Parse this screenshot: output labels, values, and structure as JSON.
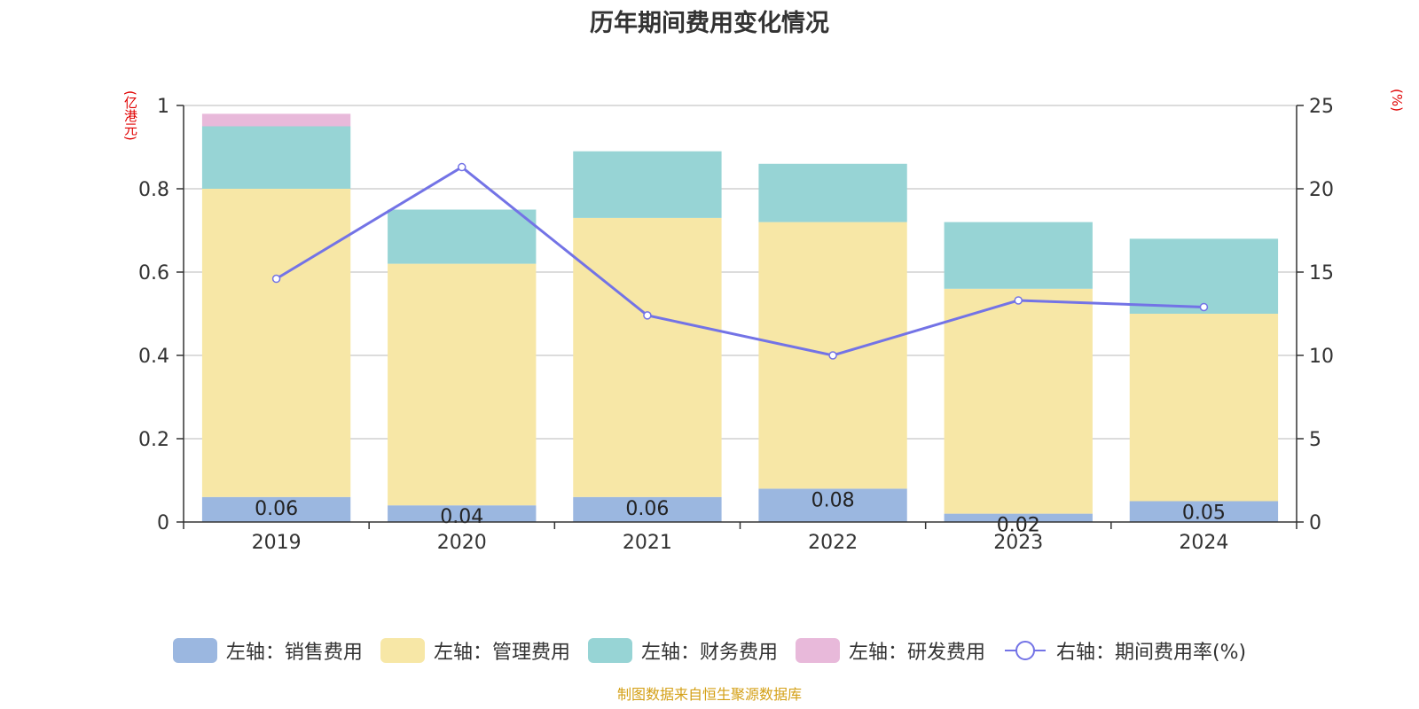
{
  "title": "历年期间费用变化情况",
  "footer": "制图数据来自恒生聚源数据库",
  "unit_left": "(亿港元)",
  "unit_right": "(%)",
  "colors": {
    "sales": "#9bb7e0",
    "admin": "#f7e7a6",
    "finance": "#97d4d5",
    "rd": "#e8b9da",
    "line": "#7373e6",
    "grid": "#c8c8c8",
    "axis": "#333333"
  },
  "legend": [
    {
      "label": "左轴：销售费用",
      "color": "#9bb7e0",
      "kind": "bar"
    },
    {
      "label": "左轴：管理费用",
      "color": "#f7e7a6",
      "kind": "bar"
    },
    {
      "label": "左轴：财务费用",
      "color": "#97d4d5",
      "kind": "bar"
    },
    {
      "label": "左轴：研发费用",
      "color": "#e8b9da",
      "kind": "bar"
    },
    {
      "label": "右轴：期间费用率(%)",
      "color": "#7373e6",
      "kind": "line"
    }
  ],
  "chart_data": {
    "type": "bar",
    "stacked": true,
    "categories": [
      "2019",
      "2020",
      "2021",
      "2022",
      "2023",
      "2024"
    ],
    "series": [
      {
        "name": "左轴：销售费用",
        "axis": "left",
        "values": [
          0.06,
          0.04,
          0.06,
          0.08,
          0.02,
          0.05
        ],
        "labels": [
          "0.06",
          "0.04",
          "0.06",
          "0.08",
          "0.02",
          "0.05"
        ]
      },
      {
        "name": "左轴：管理费用",
        "axis": "left",
        "values": [
          0.74,
          0.58,
          0.67,
          0.64,
          0.54,
          0.45
        ]
      },
      {
        "name": "左轴：财务费用",
        "axis": "left",
        "values": [
          0.15,
          0.13,
          0.16,
          0.14,
          0.16,
          0.18
        ]
      },
      {
        "name": "左轴：研发费用",
        "axis": "left",
        "values": [
          0.03,
          0,
          0,
          0,
          0,
          0
        ]
      },
      {
        "name": "右轴：期间费用率(%)",
        "axis": "right",
        "type": "line",
        "values": [
          14.6,
          21.3,
          12.4,
          10.0,
          13.3,
          12.9
        ]
      }
    ],
    "y_left": {
      "min": 0,
      "max": 1,
      "ticks": [
        "0",
        "0.2",
        "0.4",
        "0.6",
        "0.8",
        "1"
      ]
    },
    "y_right": {
      "min": 0,
      "max": 25,
      "ticks": [
        "0",
        "5",
        "10",
        "15",
        "20",
        "25"
      ]
    },
    "grid": true,
    "legend_position": "bottom"
  }
}
